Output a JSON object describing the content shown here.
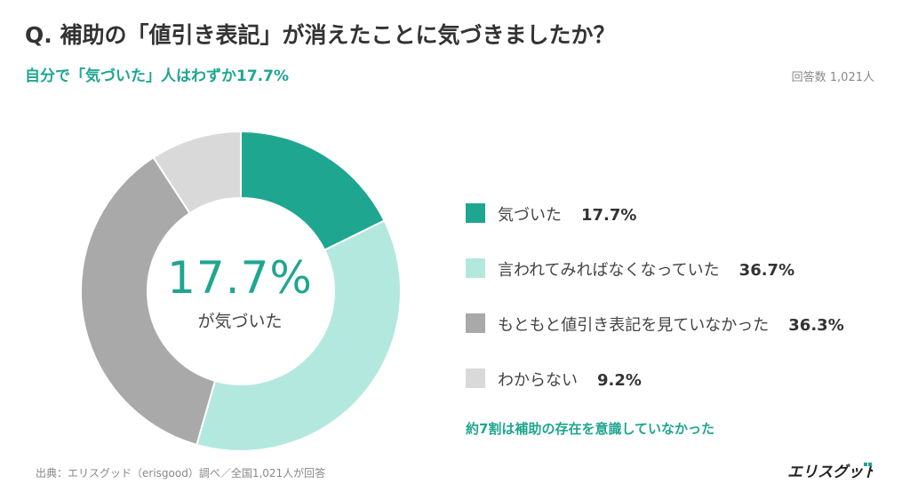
{
  "header": {
    "title": "Q. 補助の「値引き表記」が消えたことに気づきましたか？",
    "subtitle": "自分で「気づいた」人はわずか17.7%",
    "respondents": "回答数 1,021人"
  },
  "center": {
    "value": "17.7%",
    "caption": "が気づいた"
  },
  "note": "約7割は補助の存在を意識していなかった",
  "footer": {
    "source": "出典：エリスグッド（erisgood）調べ／全国1,021人が回答",
    "logo_text": "エリスグッド"
  },
  "chart_data": {
    "type": "pie",
    "donut": true,
    "title": "Q. 補助の「値引き表記」が消えたことに気づきましたか？",
    "categories": [
      "気づいた",
      "言われてみればなくなっていた",
      "もともと値引き表記を見ていなかった",
      "わからない"
    ],
    "values": [
      17.7,
      36.7,
      36.3,
      9.2
    ],
    "value_labels": [
      "17.7%",
      "36.7%",
      "36.3%",
      "9.2%"
    ],
    "colors": [
      "#1fa690",
      "#b3e8df",
      "#a9a9a9",
      "#d9d9d9"
    ],
    "legend_position": "right",
    "start_angle_deg": 0,
    "direction": "clockwise"
  }
}
